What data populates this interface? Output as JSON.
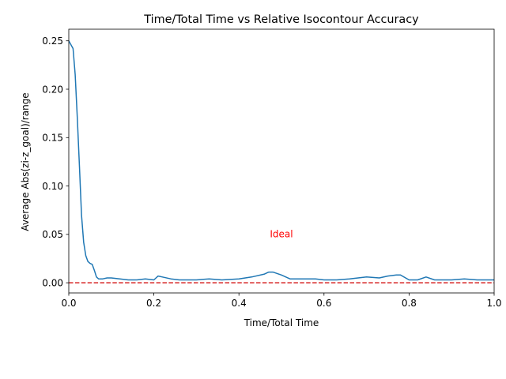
{
  "chart_data": {
    "type": "line",
    "title": "Time/Total Time vs Relative Isocontour Accuracy",
    "xlabel": "Time/Total Time",
    "ylabel": "Average Abs(zi-z_goal)/range",
    "xlim": [
      0.0,
      1.0
    ],
    "ylim": [
      -0.0105,
      0.262
    ],
    "xticks": [
      "0.0",
      "0.2",
      "0.4",
      "0.6",
      "0.8",
      "1.0"
    ],
    "yticks": [
      "0.00",
      "0.05",
      "0.10",
      "0.15",
      "0.20",
      "0.25"
    ],
    "grid": false,
    "legend": "none",
    "series": [
      {
        "color": "#1f77b4",
        "style": "solid",
        "x": [
          0.0,
          0.01,
          0.015,
          0.02,
          0.025,
          0.03,
          0.035,
          0.04,
          0.045,
          0.05,
          0.055,
          0.06,
          0.065,
          0.07,
          0.075,
          0.08,
          0.09,
          0.1,
          0.12,
          0.14,
          0.16,
          0.18,
          0.2,
          0.21,
          0.22,
          0.24,
          0.26,
          0.28,
          0.3,
          0.33,
          0.36,
          0.4,
          0.43,
          0.46,
          0.47,
          0.48,
          0.5,
          0.52,
          0.55,
          0.58,
          0.6,
          0.63,
          0.66,
          0.7,
          0.73,
          0.75,
          0.77,
          0.78,
          0.8,
          0.82,
          0.84,
          0.86,
          0.88,
          0.9,
          0.93,
          0.96,
          1.0
        ],
        "y": [
          0.25,
          0.242,
          0.215,
          0.17,
          0.12,
          0.07,
          0.042,
          0.028,
          0.022,
          0.02,
          0.019,
          0.013,
          0.006,
          0.004,
          0.004,
          0.004,
          0.005,
          0.005,
          0.004,
          0.003,
          0.003,
          0.004,
          0.003,
          0.007,
          0.006,
          0.004,
          0.003,
          0.003,
          0.003,
          0.004,
          0.003,
          0.004,
          0.006,
          0.009,
          0.011,
          0.011,
          0.008,
          0.004,
          0.004,
          0.004,
          0.003,
          0.003,
          0.004,
          0.006,
          0.005,
          0.007,
          0.008,
          0.008,
          0.003,
          0.003,
          0.006,
          0.003,
          0.003,
          0.003,
          0.004,
          0.003,
          0.003
        ]
      },
      {
        "color": "#d62728",
        "style": "dashed",
        "x": [
          0.0,
          1.0
        ],
        "y": [
          0.0,
          0.0
        ]
      }
    ],
    "annotations": [
      {
        "text": "Ideal",
        "x": 0.5,
        "y": 0.05,
        "color": "#ff0000"
      }
    ]
  }
}
